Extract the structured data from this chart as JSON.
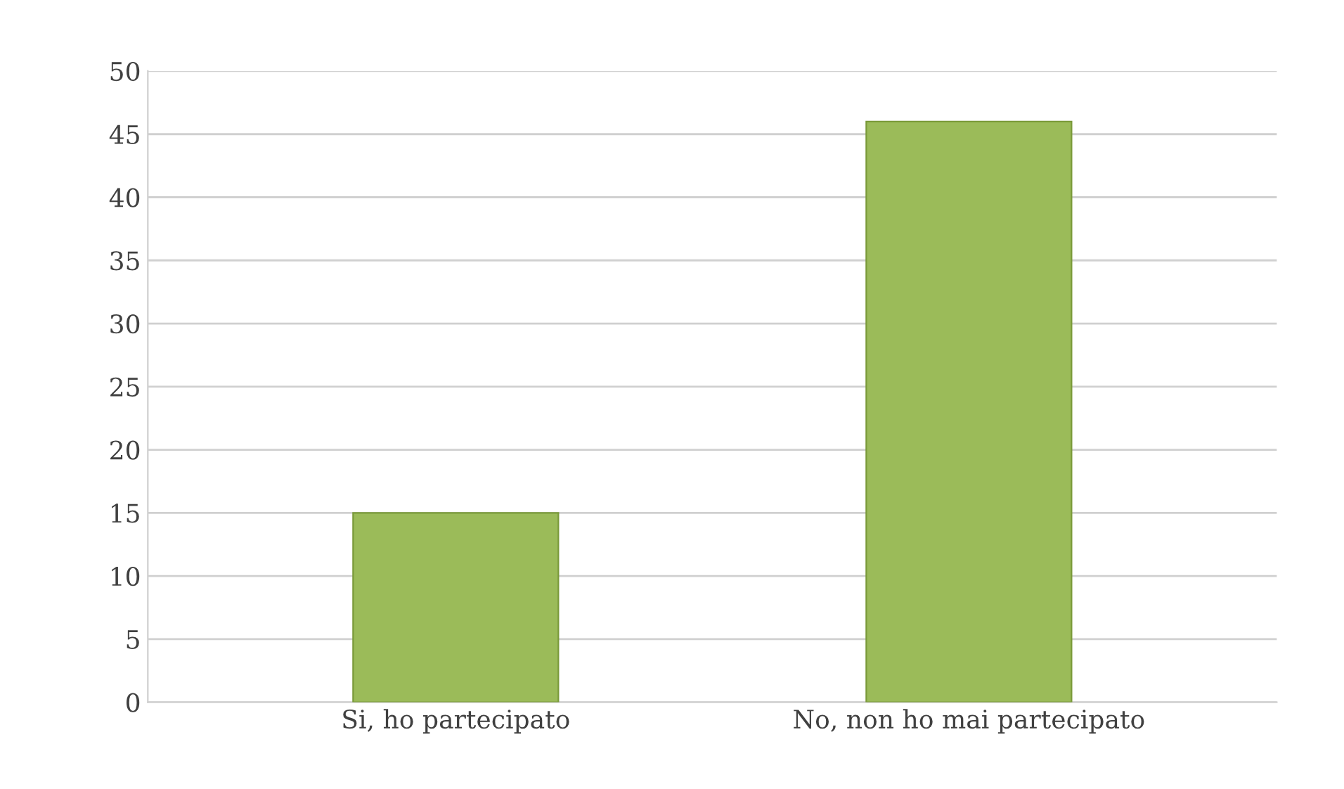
{
  "chart_data": {
    "type": "bar",
    "categories": [
      "Si, ho partecipato",
      "No, non ho mai partecipato"
    ],
    "values": [
      15,
      46
    ],
    "color": "#9bbb59",
    "ylim": [
      0,
      50
    ],
    "yticks": [
      0,
      5,
      10,
      15,
      20,
      25,
      30,
      35,
      40,
      45,
      50
    ],
    "grid": "y",
    "legend": false
  }
}
